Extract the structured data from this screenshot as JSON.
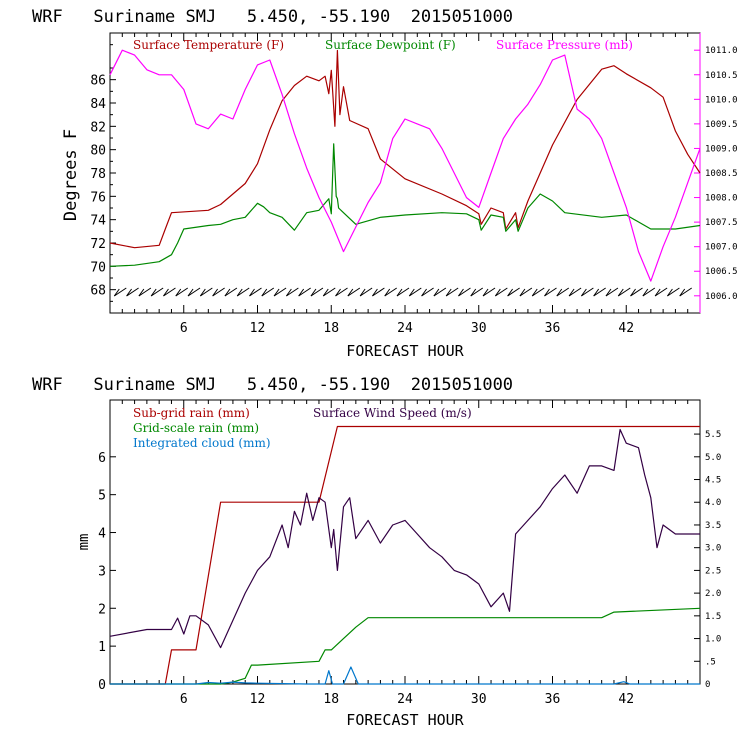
{
  "colors": {
    "temperature": "#aa0000",
    "dewpoint": "#008800",
    "pressure": "#ff00ff",
    "subgrid": "#aa0000",
    "gridscale": "#008800",
    "cloud": "#0077cc",
    "wind": "#330044",
    "barbs": "#000000"
  },
  "chart_data": [
    {
      "type": "line",
      "title": "WRF   Suriname SMJ   5.450, -55.190  2015051000",
      "xlabel": "FORECAST HOUR",
      "ylabel": "Degrees F",
      "xlim": [
        0,
        48
      ],
      "ylim": [
        66,
        90
      ],
      "x_ticks": [
        6,
        12,
        18,
        24,
        30,
        36,
        42
      ],
      "y_ticks": [
        68,
        70,
        72,
        74,
        76,
        78,
        80,
        82,
        84,
        86
      ],
      "y2lim": [
        1005.65,
        1011.35
      ],
      "y2_ticks": [
        1006.0,
        1006.5,
        1007.0,
        1007.5,
        1008.0,
        1008.5,
        1009.0,
        1009.5,
        1010.0,
        1010.5,
        1011.0
      ],
      "legend": "top",
      "series": [
        {
          "name": "Surface Temperature (F)",
          "axis": "left",
          "x": [
            0,
            2,
            4,
            4.5,
            5,
            8,
            9,
            10,
            11,
            12,
            13,
            14,
            15,
            16,
            17,
            17.5,
            17.8,
            18,
            18.3,
            18.5,
            18.7,
            19,
            19.5,
            21,
            22,
            24,
            27,
            29,
            30,
            30.2,
            31,
            32,
            32.2,
            33,
            33.2,
            34,
            36,
            38,
            40,
            41,
            42,
            44,
            45,
            46,
            47,
            48
          ],
          "values": [
            72,
            71.6,
            71.8,
            73.2,
            74.6,
            74.8,
            75.3,
            76.2,
            77.1,
            78.8,
            81.7,
            84.2,
            85.5,
            86.3,
            85.9,
            86.3,
            84.8,
            86.8,
            82,
            88.5,
            83,
            85.4,
            82.5,
            81.8,
            79.2,
            77.5,
            76.2,
            75.2,
            74.5,
            73.6,
            75,
            74.6,
            73.2,
            74.6,
            73.3,
            75.6,
            80.4,
            84.3,
            86.9,
            87.2,
            86.5,
            85.3,
            84.5,
            81.6,
            79.6,
            78
          ]
        },
        {
          "name": "Surface Dewpoint (F)",
          "axis": "left",
          "x": [
            0,
            2,
            4,
            5,
            5.5,
            6,
            8,
            9,
            10,
            11,
            12,
            12.5,
            13,
            14,
            15,
            16,
            17,
            17.8,
            18,
            18.2,
            18.4,
            18.5,
            18.6,
            19,
            20,
            22,
            24,
            27,
            29,
            30,
            30.2,
            31,
            32,
            32.2,
            33,
            33.2,
            34,
            35,
            36,
            37,
            40,
            42,
            44,
            46,
            48
          ],
          "values": [
            70,
            70.1,
            70.4,
            71,
            72,
            73.2,
            73.5,
            73.6,
            74,
            74.2,
            75.4,
            75.1,
            74.6,
            74.2,
            73.1,
            74.6,
            74.8,
            75.8,
            74.5,
            80.5,
            76,
            75.8,
            75,
            74.6,
            73.6,
            74.2,
            74.4,
            74.6,
            74.5,
            74,
            73.1,
            74.4,
            74.2,
            73,
            74,
            73,
            75,
            76.2,
            75.6,
            74.6,
            74.2,
            74.4,
            73.2,
            73.2,
            73.5
          ]
        },
        {
          "name": "Surface Pressure (mb)",
          "axis": "right",
          "x": [
            0,
            1,
            2,
            3,
            4,
            5,
            6,
            7,
            8,
            9,
            10,
            11,
            12,
            13,
            14,
            15,
            16,
            17,
            18,
            19,
            20,
            21,
            22,
            23,
            24,
            25,
            26,
            27,
            28,
            29,
            30,
            31,
            32,
            33,
            34,
            35,
            36,
            37,
            38,
            39,
            40,
            41,
            42,
            43,
            44,
            45,
            46,
            47,
            48
          ],
          "values": [
            1010.5,
            1011.0,
            1010.9,
            1010.6,
            1010.5,
            1010.5,
            1010.2,
            1009.5,
            1009.4,
            1009.7,
            1009.6,
            1010.2,
            1010.7,
            1010.8,
            1010.1,
            1009.3,
            1008.6,
            1008.0,
            1007.5,
            1006.9,
            1007.4,
            1007.9,
            1008.3,
            1009.2,
            1009.6,
            1009.5,
            1009.4,
            1009.0,
            1008.5,
            1008.0,
            1007.8,
            1008.5,
            1009.2,
            1009.6,
            1009.9,
            1010.3,
            1010.8,
            1010.9,
            1009.8,
            1009.6,
            1009.2,
            1008.5,
            1007.8,
            1006.9,
            1006.3,
            1007.0,
            1007.6,
            1008.3,
            1009.0
          ]
        }
      ],
      "wind_barbs": {
        "row_value": 67.8,
        "hours": [
          1,
          2,
          3,
          4,
          5,
          6,
          7,
          8,
          9,
          10,
          11,
          12,
          13,
          14,
          15,
          16,
          17,
          18,
          19,
          20,
          21,
          22,
          23,
          24,
          25,
          26,
          27,
          28,
          29,
          30,
          31,
          32,
          33,
          34,
          35,
          36,
          37,
          38,
          39,
          40,
          41,
          42,
          43,
          44,
          45,
          46,
          47
        ]
      }
    },
    {
      "type": "line",
      "title": "WRF   Suriname SMJ   5.450, -55.190  2015051000",
      "xlabel": "FORECAST HOUR",
      "ylabel": "mm",
      "xlim": [
        0,
        48
      ],
      "ylim": [
        0,
        7.5
      ],
      "x_ticks": [
        6,
        12,
        18,
        24,
        30,
        36,
        42
      ],
      "y_ticks": [
        0,
        1,
        2,
        3,
        4,
        5,
        6
      ],
      "y2lim": [
        0,
        6.25
      ],
      "y2_ticks": [
        0,
        0.5,
        1.0,
        1.5,
        2.0,
        2.5,
        3.0,
        3.5,
        4.0,
        4.5,
        5.0,
        5.5
      ],
      "legend": "top-left",
      "series": [
        {
          "name": "Sub-grid rain (mm)",
          "axis": "left",
          "x": [
            0,
            4.5,
            5,
            7,
            9,
            17,
            18.5,
            48
          ],
          "values": [
            0,
            0,
            0.9,
            0.9,
            4.8,
            4.8,
            6.8,
            6.8
          ]
        },
        {
          "name": "Grid-scale rain (mm)",
          "axis": "left",
          "x": [
            0,
            9,
            10,
            11,
            11.5,
            12,
            17,
            17.5,
            18,
            19,
            20,
            21,
            40,
            41,
            48
          ],
          "values": [
            0,
            0,
            0.05,
            0.15,
            0.5,
            0.5,
            0.6,
            0.9,
            0.9,
            1.2,
            1.5,
            1.75,
            1.75,
            1.9,
            2.0
          ]
        },
        {
          "name": "Integrated cloud (mm)",
          "axis": "left",
          "x": [
            0,
            7,
            8,
            9,
            10,
            11,
            12,
            16,
            17.5,
            17.8,
            18.1,
            19,
            19.6,
            20.2,
            21,
            41,
            41.8,
            42.3,
            43,
            48
          ],
          "values": [
            0,
            0,
            0.04,
            0.02,
            0.05,
            0.03,
            0.02,
            0,
            0,
            0.35,
            0,
            0,
            0.45,
            0,
            0,
            0,
            0.06,
            0,
            0,
            0
          ]
        },
        {
          "name": "Surface Wind Speed (m/s)",
          "axis": "right",
          "x": [
            0,
            3,
            5,
            5.5,
            6,
            6.5,
            7,
            8,
            9,
            10,
            11,
            12,
            13,
            14,
            14.5,
            15,
            15.5,
            16,
            16.5,
            17,
            17.5,
            18,
            18.2,
            18.5,
            19,
            19.5,
            20,
            21,
            22,
            23,
            24,
            25,
            26,
            27,
            28,
            29,
            30,
            31,
            32,
            32.5,
            33,
            34,
            35,
            36,
            37,
            38,
            39,
            40,
            41,
            41.5,
            42,
            43,
            43.5,
            44,
            44.5,
            45,
            46,
            47,
            48
          ],
          "values": [
            1.05,
            1.2,
            1.2,
            1.45,
            1.1,
            1.5,
            1.5,
            1.3,
            0.8,
            1.4,
            2.0,
            2.5,
            2.8,
            3.5,
            3.0,
            3.8,
            3.5,
            4.2,
            3.6,
            4.1,
            4.0,
            3.0,
            3.4,
            2.5,
            3.9,
            4.1,
            3.2,
            3.6,
            3.1,
            3.5,
            3.6,
            3.3,
            3.0,
            2.8,
            2.5,
            2.4,
            2.2,
            1.7,
            2.0,
            1.6,
            3.3,
            3.6,
            3.9,
            4.3,
            4.6,
            4.2,
            4.8,
            4.8,
            4.7,
            5.6,
            5.3,
            5.2,
            4.6,
            4.1,
            3.0,
            3.5,
            3.3,
            3.3,
            3.3
          ]
        }
      ]
    }
  ]
}
